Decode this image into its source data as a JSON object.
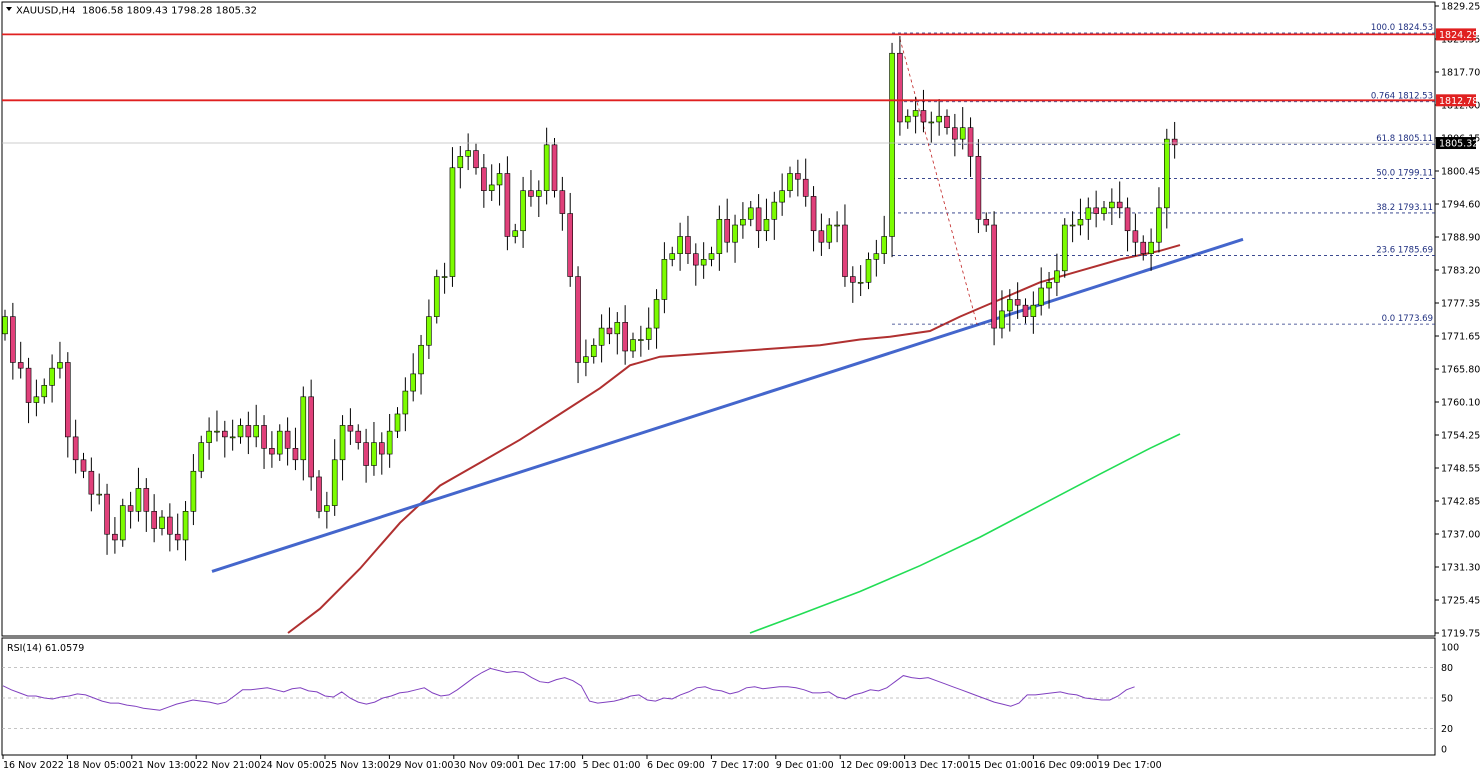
{
  "header": {
    "symbol": "XAUUSD,H4",
    "ohlc": "1806.58 1809.43 1798.28 1805.32"
  },
  "rsi_header": "RSI(14) 61.0579",
  "colors": {
    "bull": "#7CFC00",
    "bear": "#E0407A",
    "wick": "#000000",
    "ma_red": "#B03030",
    "ma_green": "#22DD55",
    "trendline": "#4466CC",
    "resistance": "#E02020",
    "fib": "#203080",
    "rsi_line": "#8040C0"
  },
  "chart_data": {
    "type": "candlestick",
    "y_ticks": [
      "1829.25",
      "1823.55",
      "1817.70",
      "1812.00",
      "1806.15",
      "1800.45",
      "1794.60",
      "1788.90",
      "1783.20",
      "1777.35",
      "1771.65",
      "1765.80",
      "1760.10",
      "1754.25",
      "1748.55",
      "1742.85",
      "1737.00",
      "1731.30",
      "1725.45",
      "1719.75"
    ],
    "x_labels": [
      "16 Nov 2022",
      "18 Nov 05:00",
      "21 Nov 13:00",
      "22 Nov 21:00",
      "24 Nov 05:00",
      "25 Nov 13:00",
      "29 Nov 01:00",
      "30 Nov 09:00",
      "1 Dec 17:00",
      "5 Dec 01:00",
      "6 Dec 09:00",
      "7 Dec 17:00",
      "9 Dec 01:00",
      "12 Dec 09:00",
      "13 Dec 17:00",
      "15 Dec 01:00",
      "16 Dec 09:00",
      "19 Dec 17:00"
    ],
    "ylim": [
      1719.75,
      1829.25
    ],
    "price_labels": {
      "top_resistance": "1824.29",
      "mid_resistance": "1812.78",
      "current": "1805.32"
    },
    "resistance_levels": [
      1824.29,
      1812.78
    ],
    "current_price": 1805.32,
    "fib_levels": [
      {
        "label": "100.0 1824.53",
        "price": 1824.53
      },
      {
        "label": "0.764 1812.53",
        "price": 1812.53
      },
      {
        "label": "61.8 1805.11",
        "price": 1805.11
      },
      {
        "label": "50.0 1799.11",
        "price": 1799.11
      },
      {
        "label": "38.2 1793.11",
        "price": 1793.11
      },
      {
        "label": "23.6 1785.69",
        "price": 1785.69
      },
      {
        "label": "0.0 1773.69",
        "price": 1773.69
      }
    ],
    "closes": [
      1775,
      1767,
      1766,
      1760,
      1761,
      1763,
      1766,
      1767,
      1754,
      1750,
      1748,
      1744,
      1744,
      1737,
      1736,
      1742,
      1741,
      1745,
      1741,
      1738,
      1740,
      1737,
      1736,
      1741,
      1748,
      1753,
      1755,
      1755,
      1754,
      1754,
      1756,
      1754,
      1756,
      1752,
      1751,
      1755,
      1752,
      1750,
      1761,
      1747,
      1741,
      1742,
      1750,
      1756,
      1755,
      1753,
      1749,
      1753,
      1751,
      1755,
      1758,
      1762,
      1765,
      1770,
      1775,
      1782,
      1782,
      1801,
      1803,
      1804,
      1801,
      1797,
      1798,
      1800,
      1789,
      1790,
      1797,
      1796,
      1797,
      1805,
      1797,
      1793,
      1782,
      1767,
      1768,
      1770,
      1773,
      1772,
      1774,
      1769,
      1771,
      1771,
      1773,
      1778,
      1785,
      1786,
      1789,
      1786,
      1784,
      1785,
      1786,
      1792,
      1788,
      1791,
      1792,
      1794,
      1790,
      1792,
      1795,
      1797,
      1800,
      1799,
      1796,
      1790,
      1788,
      1791,
      1791,
      1782,
      1781,
      1781,
      1785,
      1786,
      1789,
      1821,
      1809,
      1810,
      1811,
      1809,
      1809,
      1810,
      1808,
      1806,
      1808,
      1803,
      1792,
      1791,
      1773,
      1776,
      1778,
      1777,
      1775,
      1777,
      1780,
      1781,
      1783,
      1791,
      1791,
      1792,
      1794,
      1793,
      1794,
      1795,
      1794,
      1790,
      1788,
      1786,
      1788,
      1794,
      1806,
      1805
    ],
    "ma_red": [
      [
        288,
        1719.75
      ],
      [
        320,
        1724
      ],
      [
        360,
        1731
      ],
      [
        400,
        1739
      ],
      [
        440,
        1745.5
      ],
      [
        480,
        1749.5
      ],
      [
        520,
        1753.5
      ],
      [
        560,
        1758
      ],
      [
        600,
        1762.5
      ],
      [
        630,
        1766.5
      ],
      [
        660,
        1768
      ],
      [
        700,
        1768.5
      ],
      [
        740,
        1769
      ],
      [
        780,
        1769.5
      ],
      [
        820,
        1770
      ],
      [
        860,
        1771
      ],
      [
        890,
        1771.5
      ],
      [
        930,
        1772.5
      ],
      [
        960,
        1775
      ],
      [
        1000,
        1778
      ],
      [
        1040,
        1781
      ],
      [
        1080,
        1783
      ],
      [
        1120,
        1785
      ],
      [
        1160,
        1786.5
      ],
      [
        1180,
        1787.5
      ]
    ],
    "ma_green": [
      [
        750,
        1719.75
      ],
      [
        800,
        1723
      ],
      [
        860,
        1727
      ],
      [
        920,
        1731.5
      ],
      [
        980,
        1736.5
      ],
      [
        1040,
        1742
      ],
      [
        1100,
        1747.5
      ],
      [
        1150,
        1752
      ],
      [
        1180,
        1754.5
      ]
    ],
    "trendline": [
      [
        212,
        1730.5
      ],
      [
        1243,
        1788.5
      ]
    ],
    "fib_connector": [
      [
        900,
        1823.5
      ],
      [
        977,
        1773.69
      ]
    ],
    "rsi": {
      "ylim": [
        0,
        100
      ],
      "ticks": [
        "100",
        "80",
        "50",
        "20",
        "0"
      ],
      "levels": [
        80,
        50,
        20
      ],
      "values": [
        62,
        58,
        55,
        52,
        52,
        50,
        49,
        51,
        52,
        54,
        53,
        50,
        47,
        45,
        45,
        43,
        42,
        40,
        39,
        38,
        41,
        44,
        46,
        48,
        47,
        46,
        44,
        46,
        52,
        58,
        58,
        59,
        60,
        58,
        56,
        59,
        60,
        57,
        56,
        52,
        51,
        56,
        50,
        46,
        44,
        46,
        50,
        52,
        55,
        56,
        58,
        60,
        55,
        52,
        53,
        58,
        64,
        70,
        75,
        79,
        77,
        75,
        76,
        75,
        70,
        66,
        65,
        68,
        70,
        67,
        62,
        47,
        45,
        46,
        47,
        49,
        52,
        53,
        48,
        47,
        50,
        49,
        53,
        56,
        60,
        61,
        58,
        57,
        54,
        56,
        60,
        61,
        59,
        60,
        61,
        61,
        60,
        58,
        55,
        55,
        56,
        51,
        49,
        53,
        55,
        58,
        57,
        60,
        66,
        72,
        70,
        69,
        70,
        67,
        64,
        61,
        58,
        55,
        52,
        49,
        46,
        44,
        42,
        45,
        53,
        53,
        54,
        55,
        56,
        54,
        53,
        50,
        49,
        48,
        48,
        52,
        58,
        61
      ]
    }
  }
}
